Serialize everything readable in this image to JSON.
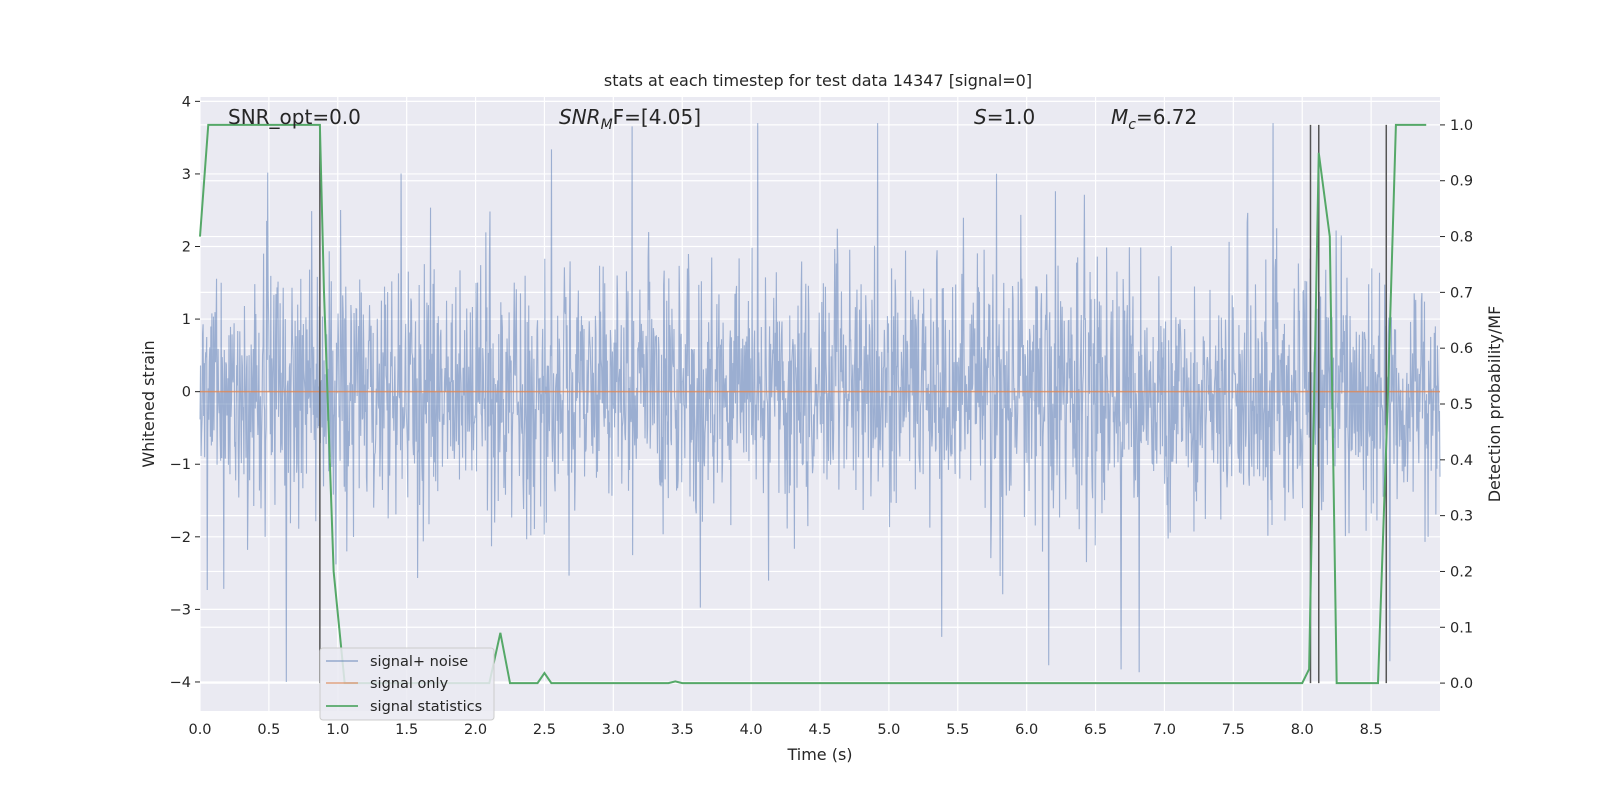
{
  "chart_data": {
    "type": "line",
    "title": "stats at each timestep for test data 14347 [signal=0]",
    "xlabel": "Time (s)",
    "ylabel": "Whitened strain",
    "y2label": "Detection probability/MF",
    "xlim": [
      0.0,
      9.0
    ],
    "ylim": [
      -4.4,
      4.06
    ],
    "y2lim": [
      -0.05,
      1.05
    ],
    "xticks": [
      0.0,
      0.5,
      1.0,
      1.5,
      2.0,
      2.5,
      3.0,
      3.5,
      4.0,
      4.5,
      5.0,
      5.5,
      6.0,
      6.5,
      7.0,
      7.5,
      8.0,
      8.5
    ],
    "xtick_labels": [
      "0.0",
      "0.5",
      "1.0",
      "1.5",
      "2.0",
      "2.5",
      "3.0",
      "3.5",
      "4.0",
      "4.5",
      "5.0",
      "5.5",
      "6.0",
      "6.5",
      "7.0",
      "7.5",
      "8.0",
      "8.5"
    ],
    "yticks": [
      -4,
      -3,
      -2,
      -1,
      0,
      1,
      2,
      3,
      4
    ],
    "ytick_labels": [
      "−4",
      "−3",
      "−2",
      "−1",
      "0",
      "1",
      "2",
      "3",
      "4"
    ],
    "y2ticks": [
      0.0,
      0.1,
      0.2,
      0.3,
      0.4,
      0.5,
      0.6,
      0.7,
      0.8,
      0.9,
      1.0
    ],
    "y2tick_labels": [
      "0.0",
      "0.1",
      "0.2",
      "0.3",
      "0.4",
      "0.5",
      "0.6",
      "0.7",
      "0.8",
      "0.9",
      "1.0"
    ],
    "grid": true,
    "legend_position": "lower-left",
    "annotations": {
      "snr_opt": "SNR_opt=0.0",
      "snr_mf_main": "SNR",
      "snr_mf_sub": "M",
      "snr_mf_rest": "F=[4.05]",
      "s_main": "S",
      "s_rest": "=1.0",
      "mc_main": "M",
      "mc_sub": "c",
      "mc_rest": "=6.72"
    },
    "series": [
      {
        "name": "signal+ noise",
        "color": "#4c72b0",
        "description_range": [
          -4.0,
          3.7
        ],
        "envelope_note": "dense whitened noise, typical amplitude ±1.5, peaks to ±3.7"
      },
      {
        "name": "signal only",
        "color": "#dd8452",
        "x": [
          0.0,
          9.0
        ],
        "y": [
          0.0,
          0.0
        ]
      },
      {
        "name": "signal statistics",
        "color": "#55a868",
        "axis": "right",
        "x": [
          0.0,
          0.06,
          0.1,
          0.5,
          0.87,
          0.9,
          0.97,
          1.05,
          2.1,
          2.18,
          2.25,
          2.45,
          2.5,
          2.55,
          3.4,
          3.45,
          3.5,
          8.0,
          8.05,
          8.12,
          8.2,
          8.25,
          8.55,
          8.62,
          8.68,
          8.74,
          8.9
        ],
        "y": [
          0.8,
          1.0,
          1.0,
          1.0,
          1.0,
          0.7,
          0.2,
          0.0,
          0.0,
          0.09,
          0.0,
          0.0,
          0.018,
          0.0,
          0.0,
          0.003,
          0.0,
          0.0,
          0.025,
          0.95,
          0.8,
          0.0,
          0.0,
          0.5,
          1.0,
          1.0,
          1.0
        ]
      }
    ],
    "vertical_markers_x": [
      0.87,
      8.06,
      8.12,
      8.61
    ]
  }
}
